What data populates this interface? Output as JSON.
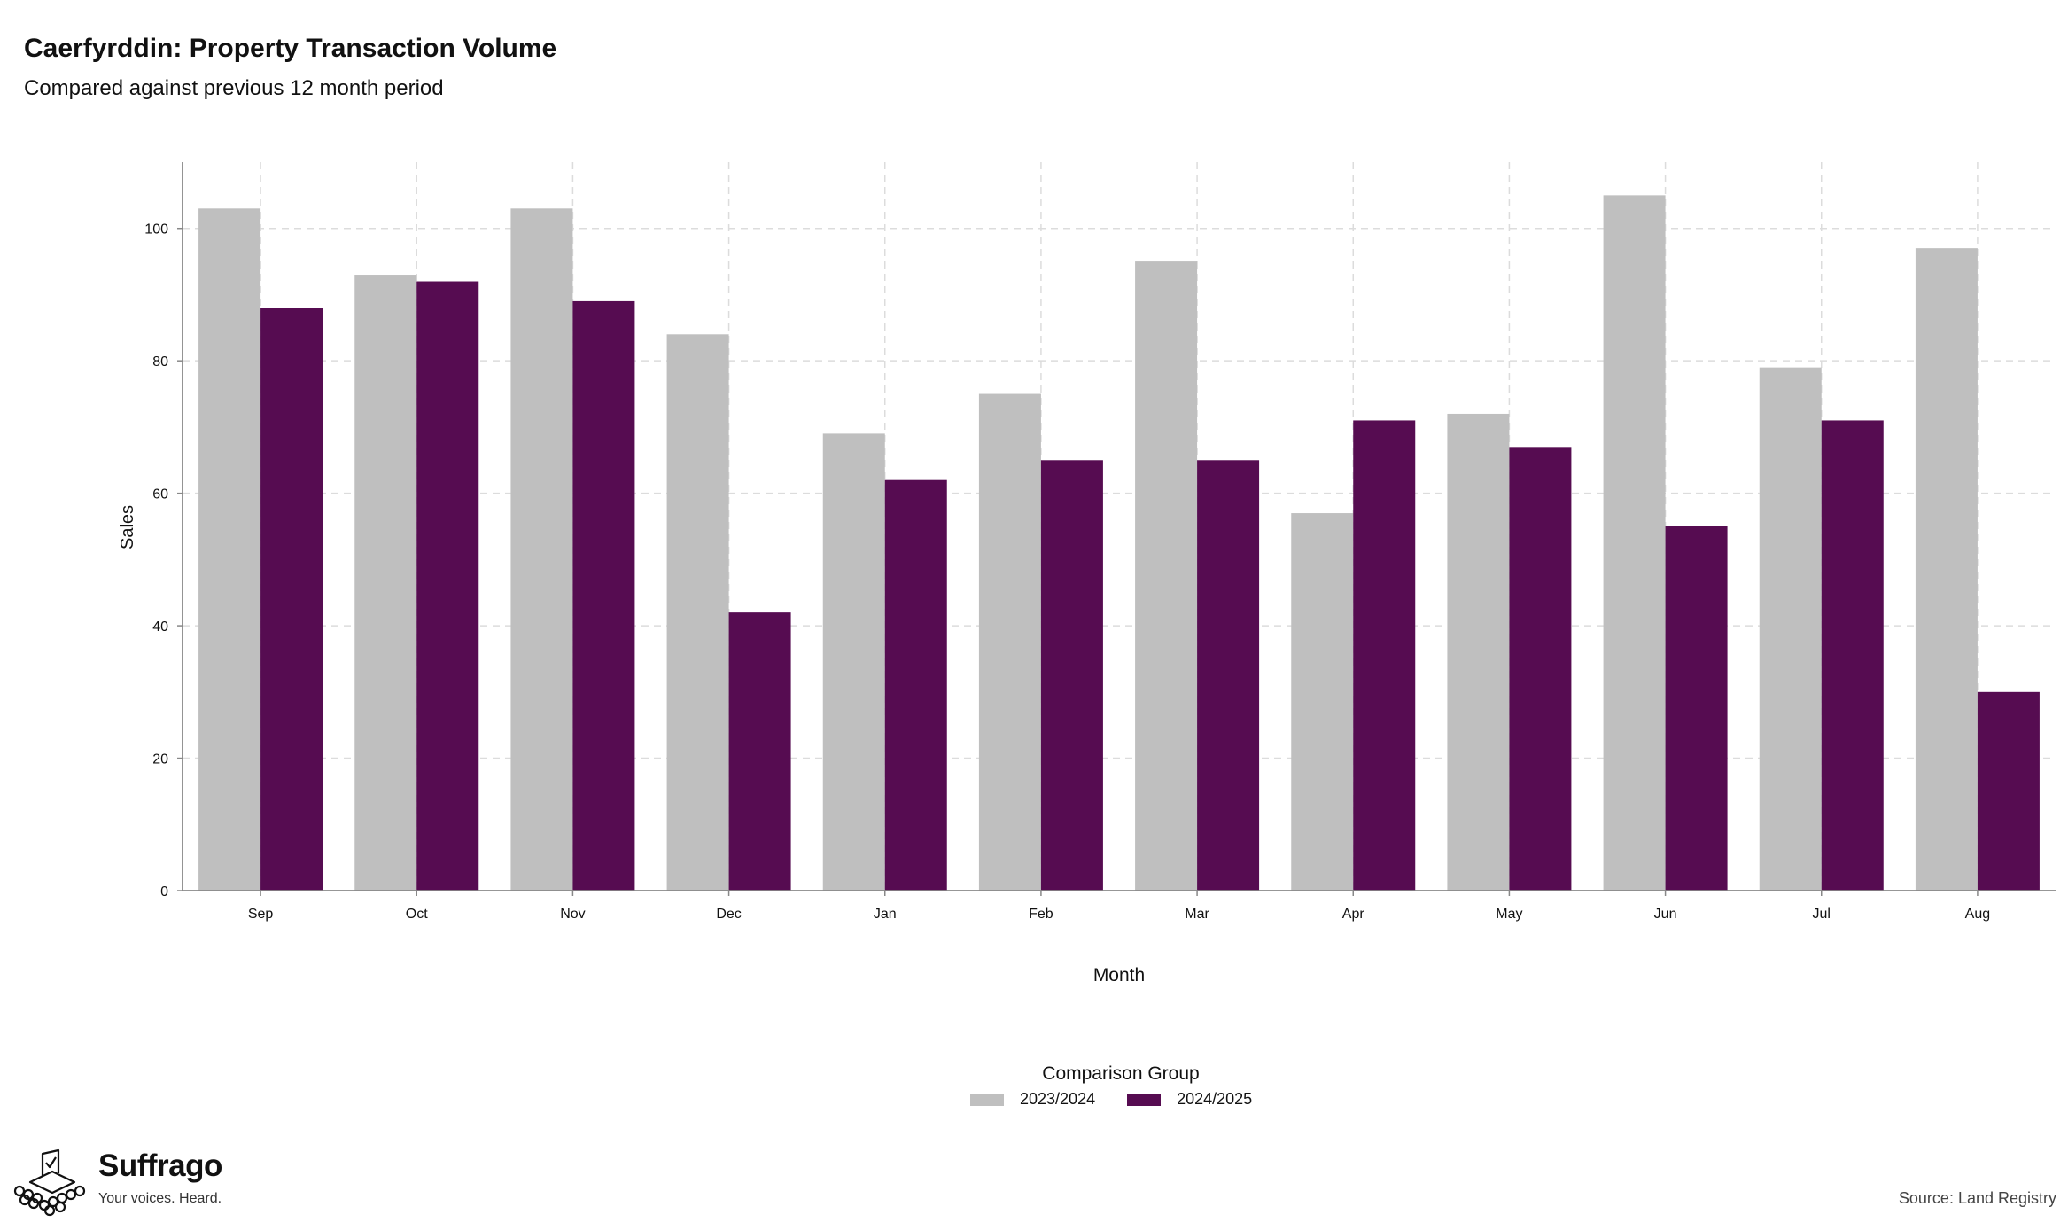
{
  "header": {
    "title": "Caerfyrddin: Property Transaction Volume",
    "subtitle": "Compared against previous 12 month period"
  },
  "legend": {
    "title": "Comparison Group"
  },
  "footer": {
    "brand": "Suffrago",
    "tagline": "Your voices. Heard.",
    "source": "Source: Land Registry"
  },
  "chart_data": {
    "type": "bar",
    "xlabel": "Month",
    "ylabel": "Sales",
    "ylim": [
      0,
      110
    ],
    "yticks": [
      0,
      20,
      40,
      60,
      80,
      100
    ],
    "grid": true,
    "legend_position": "bottom",
    "categories": [
      "Sep",
      "Oct",
      "Nov",
      "Dec",
      "Jan",
      "Feb",
      "Mar",
      "Apr",
      "May",
      "Jun",
      "Jul",
      "Aug"
    ],
    "series": [
      {
        "name": "2023/2024",
        "color": "#bfbfbf",
        "values": [
          103,
          93,
          103,
          84,
          69,
          75,
          95,
          57,
          72,
          105,
          79,
          97
        ]
      },
      {
        "name": "2024/2025",
        "color": "#560c51",
        "values": [
          88,
          92,
          89,
          42,
          62,
          65,
          65,
          71,
          67,
          55,
          71,
          30
        ]
      }
    ]
  }
}
